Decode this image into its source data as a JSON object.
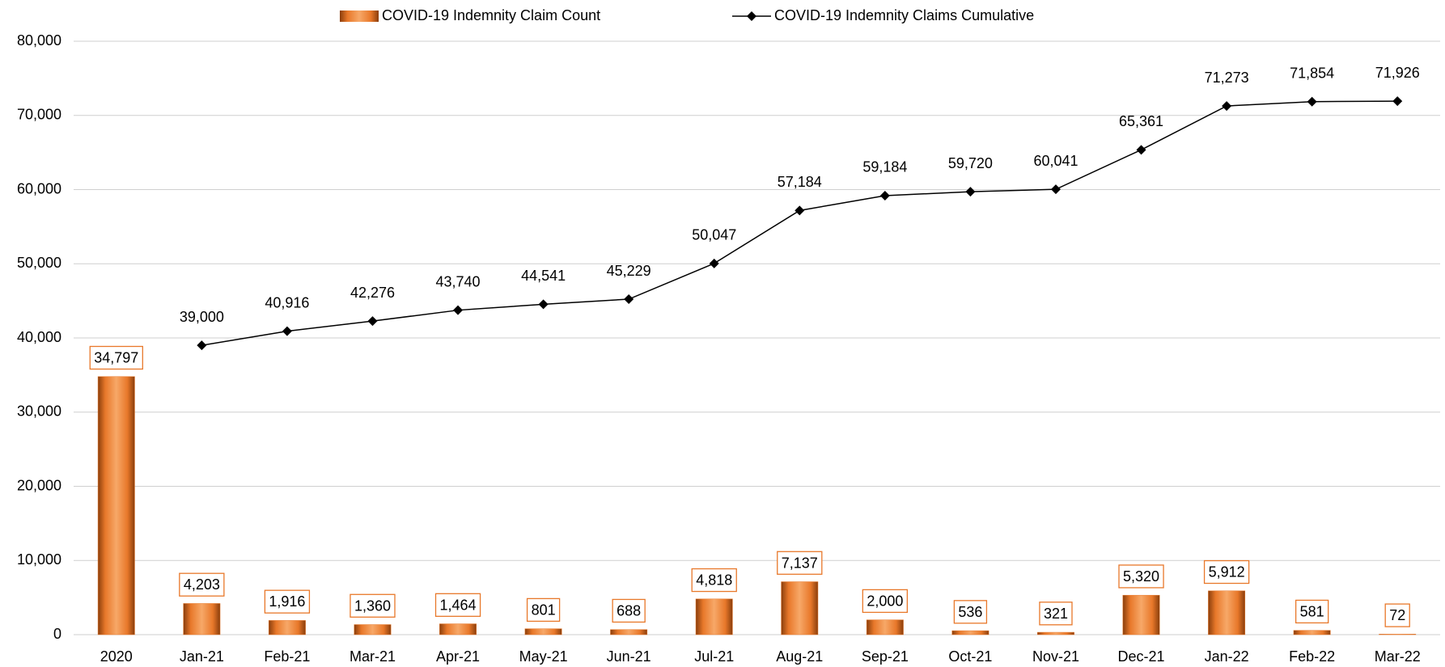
{
  "chart_data": {
    "type": "bar",
    "categories": [
      "2020",
      "Jan-21",
      "Feb-21",
      "Mar-21",
      "Apr-21",
      "May-21",
      "Jun-21",
      "Jul-21",
      "Aug-21",
      "Sep-21",
      "Oct-21",
      "Nov-21",
      "Dec-21",
      "Jan-22",
      "Feb-22",
      "Mar-22"
    ],
    "series": [
      {
        "name": "COVID-19 Indemnity Claim Count",
        "type": "bar",
        "color": "#e8782a",
        "values": [
          34797,
          4203,
          1916,
          1360,
          1464,
          801,
          688,
          4818,
          7137,
          2000,
          536,
          321,
          5320,
          5912,
          581,
          72
        ],
        "value_labels": [
          "34,797",
          "4,203",
          "1,916",
          "1,360",
          "1,464",
          "801",
          "688",
          "4,818",
          "7,137",
          "2,000",
          "536",
          "321",
          "5,320",
          "5,912",
          "581",
          "72"
        ]
      },
      {
        "name": "COVID-19 Indemnity Claims Cumulative",
        "type": "line",
        "color": "#000000",
        "values": [
          null,
          39000,
          40916,
          42276,
          43740,
          44541,
          45229,
          50047,
          57184,
          59184,
          59720,
          60041,
          65361,
          71273,
          71854,
          71926
        ],
        "value_labels": [
          null,
          "39,000",
          "40,916",
          "42,276",
          "43,740",
          "44,541",
          "45,229",
          "50,047",
          "57,184",
          "59,184",
          "59,720",
          "60,041",
          "65,361",
          "71,273",
          "71,854",
          "71,926"
        ]
      }
    ],
    "ylim": [
      0,
      80000
    ],
    "yticks": [
      0,
      {
        "value": 10000,
        "label": "10,000"
      },
      {
        "value": 20000,
        "label": "20,000"
      },
      {
        "value": 30000,
        "label": "30,000"
      },
      {
        "value": 40000,
        "label": "40,000"
      },
      {
        "value": 50000,
        "label": "50,000"
      },
      {
        "value": 60000,
        "label": "60,000"
      },
      {
        "value": 70000,
        "label": "70,000"
      },
      {
        "value": 80000,
        "label": "80,000"
      }
    ],
    "grid": true,
    "legend": "top"
  }
}
